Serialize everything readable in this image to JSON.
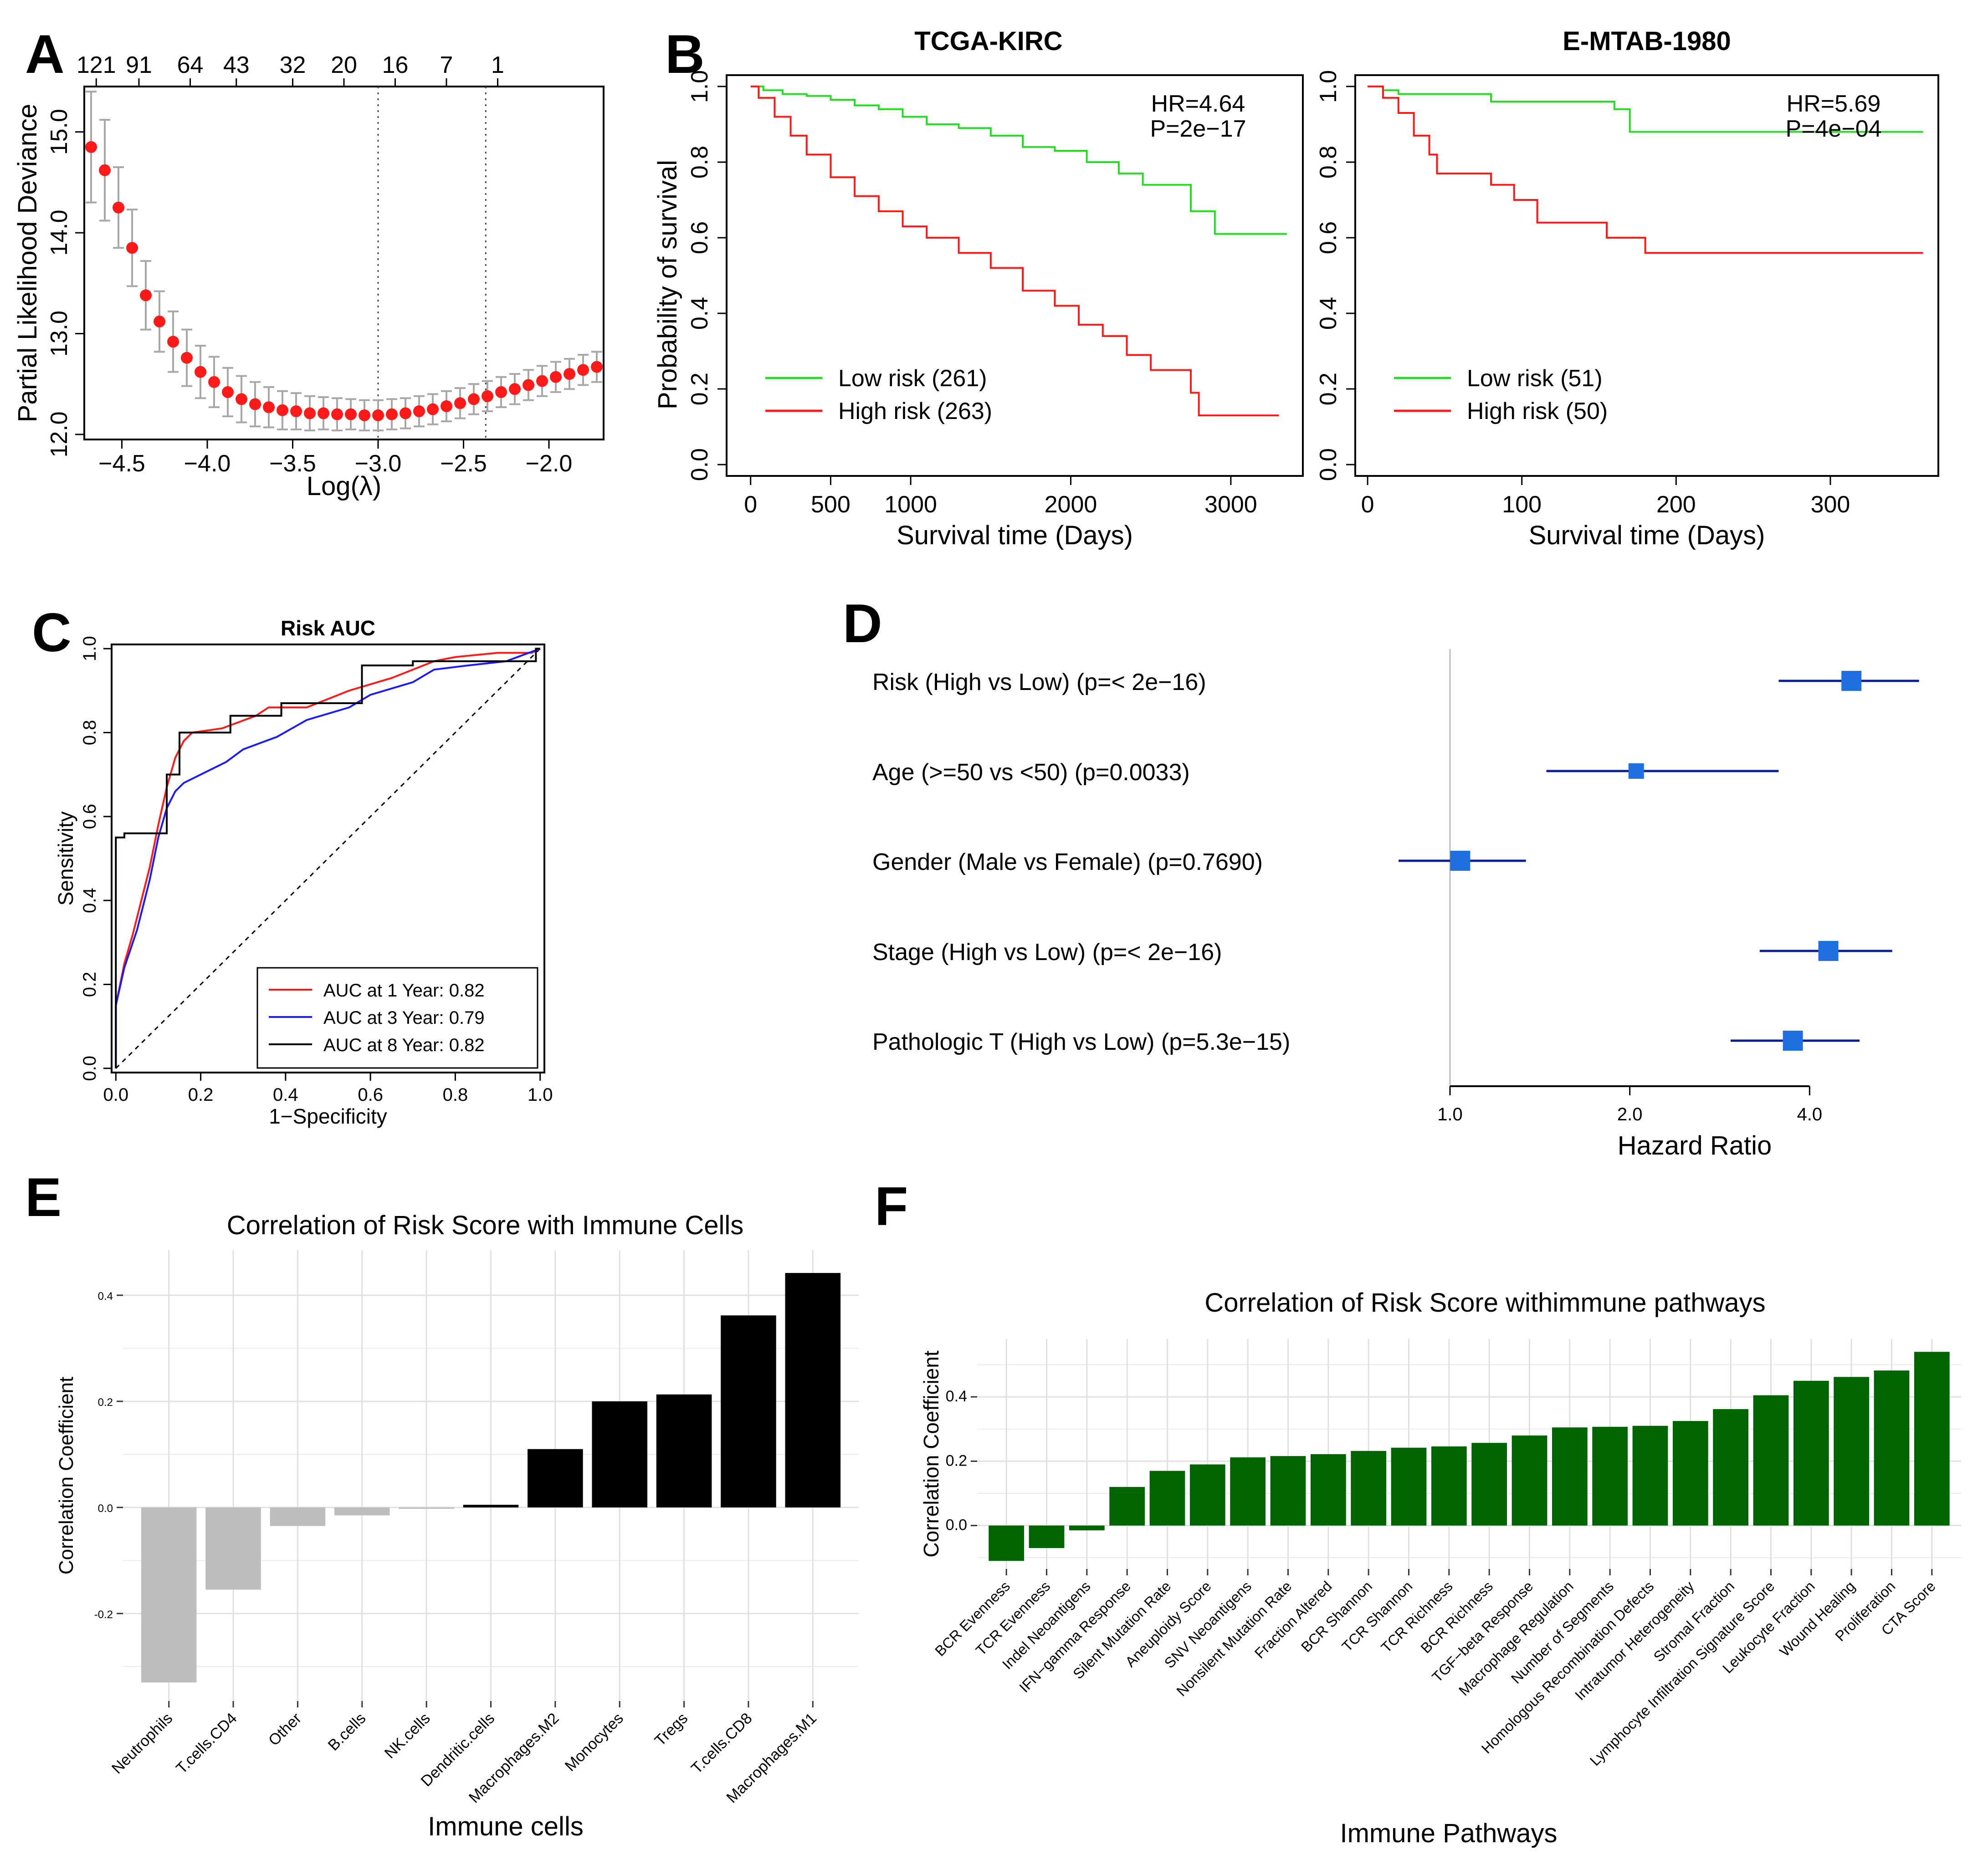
{
  "colors": {
    "red": "#ff1a1a",
    "green": "#22dd22",
    "blue": "#1a1aff",
    "navy": "#0a1f8f",
    "forest_square": "#1f6fe0",
    "bar_gray": "#bdbdbd",
    "bar_black": "#000000",
    "bar_green": "#006400",
    "grid": "#ebebeb"
  },
  "panel_letters": {
    "A": "A",
    "B": "B",
    "C": "C",
    "D": "D",
    "E": "E",
    "F": "F"
  },
  "chart_data": [
    {
      "id": "A",
      "type": "scatter",
      "title": "",
      "xlabel": "Log(λ)",
      "ylabel": "Partial Likelihood Deviance",
      "xlim": [
        -4.72,
        -1.68
      ],
      "ylim": [
        11.95,
        15.45
      ],
      "xticks": [
        -4.5,
        -4.0,
        -3.5,
        -3.0,
        -2.5,
        -2.0
      ],
      "xtick_labels": [
        "−4.5",
        "−4.0",
        "−3.5",
        "−3.0",
        "−2.5",
        "−2.0"
      ],
      "yticks": [
        12.0,
        13.0,
        14.0,
        15.0
      ],
      "ytick_labels": [
        "12.0",
        "13.0",
        "14.0",
        "15.0"
      ],
      "top_axis": {
        "positions": [
          -4.65,
          -4.4,
          -4.1,
          -3.83,
          -3.5,
          -3.2,
          -2.9,
          -2.6,
          -2.3
        ],
        "labels": [
          "121",
          "91",
          "64",
          "43",
          "32",
          "20",
          "16",
          "7",
          "1"
        ]
      },
      "vlines": [
        -3.0,
        -2.37
      ],
      "points": {
        "x": [
          -4.68,
          -4.6,
          -4.52,
          -4.44,
          -4.36,
          -4.28,
          -4.2,
          -4.12,
          -4.04,
          -3.96,
          -3.88,
          -3.8,
          -3.72,
          -3.64,
          -3.56,
          -3.48,
          -3.4,
          -3.32,
          -3.24,
          -3.16,
          -3.08,
          -3.0,
          -2.92,
          -2.84,
          -2.76,
          -2.68,
          -2.6,
          -2.52,
          -2.44,
          -2.36,
          -2.28,
          -2.2,
          -2.12,
          -2.04,
          -1.96,
          -1.88,
          -1.8,
          -1.72
        ],
        "y": [
          14.85,
          14.62,
          14.25,
          13.85,
          13.38,
          13.12,
          12.92,
          12.76,
          12.62,
          12.52,
          12.42,
          12.35,
          12.3,
          12.27,
          12.24,
          12.23,
          12.21,
          12.21,
          12.2,
          12.2,
          12.19,
          12.19,
          12.2,
          12.21,
          12.23,
          12.25,
          12.28,
          12.31,
          12.35,
          12.38,
          12.42,
          12.45,
          12.49,
          12.53,
          12.57,
          12.6,
          12.64,
          12.67
        ],
        "err": [
          0.55,
          0.5,
          0.4,
          0.38,
          0.34,
          0.3,
          0.3,
          0.28,
          0.26,
          0.25,
          0.24,
          0.23,
          0.22,
          0.2,
          0.19,
          0.18,
          0.17,
          0.16,
          0.16,
          0.15,
          0.15,
          0.15,
          0.15,
          0.15,
          0.15,
          0.15,
          0.15,
          0.15,
          0.15,
          0.15,
          0.15,
          0.15,
          0.15,
          0.15,
          0.15,
          0.15,
          0.15,
          0.15
        ]
      }
    },
    {
      "id": "B1",
      "type": "line",
      "title": "TCGA-KIRC",
      "xlabel": "Survival time (Days)",
      "ylabel": "Probability of survival",
      "xlim": [
        -150,
        3450
      ],
      "ylim": [
        -0.03,
        1.03
      ],
      "xticks": [
        0,
        500,
        1000,
        2000,
        3000
      ],
      "xtick_labels": [
        "0",
        "500",
        "1000",
        "2000",
        "3000"
      ],
      "yticks": [
        0,
        0.2,
        0.4,
        0.6,
        0.8,
        1.0
      ],
      "ytick_labels": [
        "0.0",
        "0.2",
        "0.4",
        "0.6",
        "0.8",
        "1.0"
      ],
      "annotation": [
        "HR=4.64",
        "P=2e−17"
      ],
      "legend": [
        {
          "label": "Low risk (261)",
          "color": "#22dd22"
        },
        {
          "label": "High risk (263)",
          "color": "#ff1a1a"
        }
      ],
      "series": [
        {
          "name": "Low risk (261)",
          "color": "#22dd22",
          "x": [
            0,
            80,
            200,
            350,
            500,
            650,
            800,
            950,
            1100,
            1300,
            1500,
            1700,
            1900,
            2100,
            2300,
            2450,
            2600,
            2750,
            2900,
            3350
          ],
          "y": [
            1.0,
            0.99,
            0.98,
            0.975,
            0.965,
            0.95,
            0.94,
            0.92,
            0.9,
            0.89,
            0.87,
            0.84,
            0.83,
            0.8,
            0.77,
            0.74,
            0.74,
            0.67,
            0.61,
            0.61
          ]
        },
        {
          "name": "High risk (263)",
          "color": "#ff1a1a",
          "x": [
            0,
            50,
            150,
            250,
            350,
            500,
            650,
            800,
            950,
            1100,
            1300,
            1500,
            1700,
            1900,
            2050,
            2200,
            2350,
            2500,
            2750,
            2800,
            3300
          ],
          "y": [
            1.0,
            0.97,
            0.92,
            0.87,
            0.82,
            0.76,
            0.71,
            0.67,
            0.63,
            0.6,
            0.56,
            0.52,
            0.46,
            0.42,
            0.37,
            0.34,
            0.29,
            0.25,
            0.19,
            0.13,
            0.13
          ]
        }
      ]
    },
    {
      "id": "B2",
      "type": "line",
      "title": "E-MTAB-1980",
      "xlabel": "Survival time (Days)",
      "ylabel": "",
      "xlim": [
        -8,
        370
      ],
      "ylim": [
        -0.03,
        1.03
      ],
      "xticks": [
        0,
        100,
        200,
        300
      ],
      "xtick_labels": [
        "0",
        "100",
        "200",
        "300"
      ],
      "yticks": [
        0,
        0.2,
        0.4,
        0.6,
        0.8,
        1.0
      ],
      "ytick_labels": [
        "0.0",
        "0.2",
        "0.4",
        "0.6",
        "0.8",
        "1.0"
      ],
      "annotation": [
        "HR=5.69",
        "P=4e−04"
      ],
      "legend": [
        {
          "label": "Low risk (51)",
          "color": "#22dd22"
        },
        {
          "label": "High risk (50)",
          "color": "#ff1a1a"
        }
      ],
      "series": [
        {
          "name": "Low risk (51)",
          "color": "#22dd22",
          "x": [
            0,
            10,
            20,
            80,
            160,
            170,
            360
          ],
          "y": [
            1.0,
            0.99,
            0.98,
            0.96,
            0.94,
            0.88,
            0.88
          ]
        },
        {
          "name": "High risk (50)",
          "color": "#ff1a1a",
          "x": [
            0,
            10,
            20,
            30,
            40,
            45,
            60,
            80,
            95,
            110,
            155,
            180,
            360
          ],
          "y": [
            1.0,
            0.97,
            0.93,
            0.87,
            0.82,
            0.77,
            0.77,
            0.74,
            0.7,
            0.64,
            0.6,
            0.56,
            0.56
          ]
        }
      ]
    },
    {
      "id": "C",
      "type": "line",
      "title": "Risk AUC",
      "xlabel": "1−Specificity",
      "ylabel": "Sensitivity",
      "xlim": [
        -0.01,
        1.01
      ],
      "ylim": [
        -0.01,
        1.01
      ],
      "xticks": [
        0,
        0.2,
        0.4,
        0.6,
        0.8,
        1.0
      ],
      "xtick_labels": [
        "0.0",
        "0.2",
        "0.4",
        "0.6",
        "0.8",
        "1.0"
      ],
      "yticks": [
        0,
        0.2,
        0.4,
        0.6,
        0.8,
        1.0
      ],
      "ytick_labels": [
        "0.0",
        "0.2",
        "0.4",
        "0.6",
        "0.8",
        "1.0"
      ],
      "legend": [
        {
          "label": "AUC at 1 Year: 0.82",
          "color": "#ff1a1a"
        },
        {
          "label": "AUC at 3 Year: 0.79",
          "color": "#1a1aff"
        },
        {
          "label": "AUC at 8 Year: 0.82",
          "color": "#000000"
        }
      ],
      "series": [
        {
          "name": "AUC at 1 Year: 0.82",
          "color": "#ff1a1a",
          "x": [
            0,
            0,
            0.02,
            0.04,
            0.06,
            0.08,
            0.1,
            0.12,
            0.14,
            0.16,
            0.18,
            0.25,
            0.33,
            0.36,
            0.45,
            0.55,
            0.65,
            0.75,
            0.8,
            0.9,
            0.98,
            1.0
          ],
          "y": [
            0,
            0.15,
            0.25,
            0.32,
            0.4,
            0.48,
            0.58,
            0.67,
            0.74,
            0.78,
            0.8,
            0.81,
            0.84,
            0.86,
            0.86,
            0.9,
            0.93,
            0.97,
            0.98,
            0.99,
            0.99,
            1.0
          ]
        },
        {
          "name": "AUC at 3 Year: 0.79",
          "color": "#1a1aff",
          "x": [
            0,
            0,
            0.02,
            0.05,
            0.08,
            0.1,
            0.12,
            0.14,
            0.16,
            0.2,
            0.26,
            0.3,
            0.38,
            0.45,
            0.55,
            0.6,
            0.7,
            0.75,
            0.83,
            0.92,
            1.0
          ],
          "y": [
            0,
            0.15,
            0.24,
            0.33,
            0.45,
            0.55,
            0.62,
            0.66,
            0.68,
            0.7,
            0.73,
            0.76,
            0.79,
            0.83,
            0.86,
            0.89,
            0.92,
            0.95,
            0.96,
            0.97,
            1.0
          ]
        },
        {
          "name": "AUC at 8 Year: 0.82",
          "color": "#000000",
          "x": [
            0,
            0,
            0.02,
            0.02,
            0.12,
            0.12,
            0.15,
            0.15,
            0.27,
            0.27,
            0.39,
            0.39,
            0.58,
            0.58,
            0.7,
            0.7,
            0.99,
            0.99,
            1.0
          ],
          "y": [
            0,
            0.55,
            0.55,
            0.56,
            0.56,
            0.7,
            0.7,
            0.8,
            0.8,
            0.84,
            0.84,
            0.87,
            0.87,
            0.96,
            0.96,
            0.97,
            0.97,
            1.0,
            1.0
          ]
        }
      ]
    },
    {
      "id": "D",
      "type": "scatter",
      "title": "",
      "xlabel": "Hazard Ratio",
      "xticks": [
        1.0,
        2.0,
        4.0
      ],
      "xtick_labels": [
        "1.0",
        "2.0",
        "4.0"
      ],
      "x_scale": "log",
      "xlim": [
        0.82,
        6.4
      ],
      "rows": [
        {
          "label": "Risk (High vs Low) (p=< 2e−16)",
          "hr": 4.7,
          "lo": 3.55,
          "hi": 6.1
        },
        {
          "label": "Age (>=50 vs <50) (p=0.0033)",
          "hr": 2.05,
          "lo": 1.45,
          "hi": 3.55
        },
        {
          "label": "Gender (Male vs Female) (p=0.7690)",
          "hr": 1.04,
          "lo": 0.82,
          "hi": 1.34
        },
        {
          "label": "Stage (High vs Low) (p=< 2e−16)",
          "hr": 4.3,
          "lo": 3.3,
          "hi": 5.5
        },
        {
          "label": "Pathologic T (High vs Low) (p=5.3e−15)",
          "hr": 3.75,
          "lo": 2.95,
          "hi": 4.85
        }
      ]
    },
    {
      "id": "E",
      "type": "bar",
      "title": "Correlation of Risk Score with Immune Cells",
      "xlabel": "Immune cells",
      "ylabel": "Correlation Coefficient",
      "ylim": [
        -0.365,
        0.485
      ],
      "yticks": [
        -0.2,
        0.0,
        0.2,
        0.4
      ],
      "ytick_labels": [
        "-0.2",
        "0.0",
        "0.2",
        "0.4"
      ],
      "categories": [
        "Neutrophils",
        "T.cells.CD4",
        "Other",
        "B.cells",
        "NK.cells",
        "Dendritic.cells",
        "Macrophages.M2",
        "Monocytes",
        "Tregs",
        "T.cells.CD8",
        "Macrophages.M1"
      ],
      "values": [
        -0.33,
        -0.155,
        -0.035,
        -0.015,
        -0.002,
        0.005,
        0.11,
        0.2,
        0.213,
        0.362,
        0.442
      ],
      "bar_colors": [
        "#bdbdbd",
        "#bdbdbd",
        "#bdbdbd",
        "#bdbdbd",
        "#bdbdbd",
        "#000000",
        "#000000",
        "#000000",
        "#000000",
        "#000000",
        "#000000"
      ]
    },
    {
      "id": "F",
      "type": "bar",
      "title": "Correlation of Risk Score withimmune pathways",
      "xlabel": "Immune Pathways",
      "ylabel": "Correlation Coefficient",
      "ylim": [
        -0.135,
        0.58
      ],
      "yticks": [
        0.0,
        0.2,
        0.4
      ],
      "ytick_labels": [
        "0.0",
        "0.2",
        "0.4"
      ],
      "categories": [
        "BCR Evenness",
        "TCR Evenness",
        "Indel Neoantigens",
        "IFN−gamma Response",
        "Silent Mutation Rate",
        "Aneuploidy Score",
        "SNV Neoantigens",
        "Nonsilent Mutation Rate",
        "Fraction Altered",
        "BCR Shannon",
        "TCR Shannon",
        "TCR Richness",
        "BCR Richness",
        "TGF−beta Response",
        "Macrophage Regulation",
        "Number of Segments",
        "Homologous Recombination Defects",
        "Intratumor Heterogeneity",
        "Stromal Fraction",
        "Lymphocyte Infiltration Signature Score",
        "Leukocyte Fraction",
        "Wound Healing",
        "Proliferation",
        "CTA Score"
      ],
      "values": [
        -0.11,
        -0.07,
        -0.015,
        0.12,
        0.17,
        0.19,
        0.212,
        0.216,
        0.222,
        0.232,
        0.242,
        0.246,
        0.257,
        0.28,
        0.305,
        0.307,
        0.31,
        0.325,
        0.362,
        0.405,
        0.45,
        0.462,
        0.482,
        0.54
      ],
      "bar_color": "#006400"
    }
  ]
}
